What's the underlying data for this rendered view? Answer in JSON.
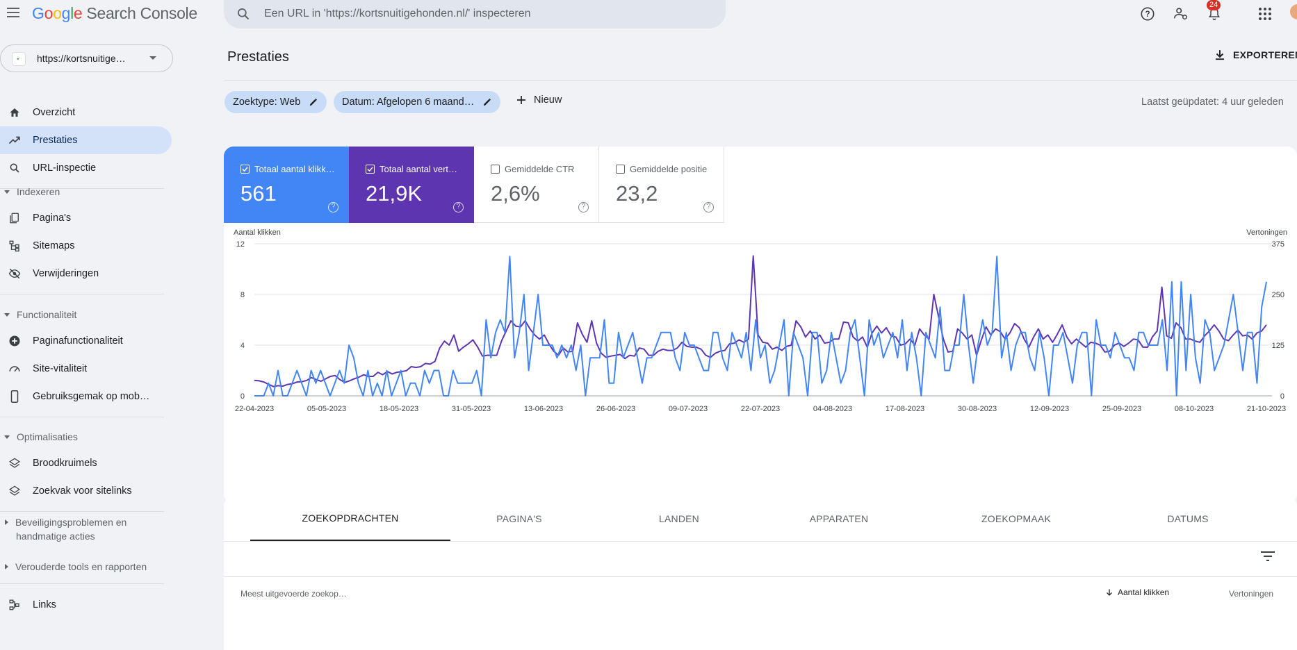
{
  "app": {
    "title_google": "Google",
    "title_product": "Search Console"
  },
  "search": {
    "placeholder": "Een URL in 'https://kortsnuitigehonden.nl/' inspecteren"
  },
  "topbar": {
    "notifications_count": "24"
  },
  "property": {
    "label": "https://kortsnuitige…"
  },
  "sidebar": {
    "items": [
      {
        "label": "Overzicht",
        "icon": "home-icon"
      },
      {
        "label": "Prestaties",
        "icon": "trending-up-icon"
      },
      {
        "label": "URL-inspectie",
        "icon": "search-icon"
      }
    ],
    "sections": [
      {
        "label": "Indexeren",
        "items": [
          {
            "label": "Pagina's",
            "icon": "pages-icon"
          },
          {
            "label": "Sitemaps",
            "icon": "sitemap-icon"
          },
          {
            "label": "Verwijderingen",
            "icon": "eye-off-icon"
          }
        ]
      },
      {
        "label": "Functionaliteit",
        "items": [
          {
            "label": "Paginafunctionaliteit",
            "icon": "plus-circle-icon"
          },
          {
            "label": "Site-vitaliteit",
            "icon": "gauge-icon"
          },
          {
            "label": "Gebruiksgemak op mob…",
            "icon": "phone-icon"
          }
        ]
      },
      {
        "label": "Optimalisaties",
        "items": [
          {
            "label": "Broodkruimels",
            "icon": "layers-icon"
          },
          {
            "label": "Zoekvak voor sitelinks",
            "icon": "layers-icon"
          }
        ]
      }
    ],
    "security_line1": "Beveiligingsproblemen en",
    "security_line2": "handmatige acties",
    "legacy": "Verouderde tools en rapporten",
    "links": "Links"
  },
  "main": {
    "title": "Prestaties",
    "export": "EXPORTEREN",
    "chip_type": "Zoektype: Web",
    "chip_date": "Datum: Afgelopen 6 maand…",
    "new": "Nieuw",
    "updated": "Laatst geüpdatet: 4 uur geleden"
  },
  "metrics": [
    {
      "label": "Totaal aantal klikk…",
      "value": "561",
      "checked": true
    },
    {
      "label": "Totaal aantal vert…",
      "value": "21,9K",
      "checked": true
    },
    {
      "label": "Gemiddelde CTR",
      "value": "2,6%",
      "checked": false
    },
    {
      "label": "Gemiddelde positie",
      "value": "23,2",
      "checked": false
    }
  ],
  "colors": {
    "clicks": "#4285f4",
    "impressions": "#5e35b1"
  },
  "chart_data": {
    "type": "line",
    "ylabel_left": "Aantal klikken",
    "ylabel_right": "Vertoningen",
    "y_left_ticks": [
      "0",
      "4",
      "8",
      "12"
    ],
    "y_right_ticks": [
      "0",
      "125",
      "250",
      "375"
    ],
    "ylim_left": [
      0,
      12
    ],
    "ylim_right": [
      0,
      375
    ],
    "x_ticks": [
      "22-04-2023",
      "05-05-2023",
      "18-05-2023",
      "31-05-2023",
      "13-06-2023",
      "26-06-2023",
      "09-07-2023",
      "22-07-2023",
      "04-08-2023",
      "17-08-2023",
      "30-08-2023",
      "12-09-2023",
      "25-09-2023",
      "08-10-2023",
      "21-10-2023"
    ],
    "series": [
      {
        "name": "Aantal klikken",
        "axis": "left",
        "values": [
          0,
          0,
          0,
          1,
          0,
          2,
          0,
          0,
          1,
          2,
          1,
          0,
          2,
          1,
          2,
          1,
          0,
          1,
          2,
          1,
          4,
          3,
          1,
          0,
          2,
          0,
          1,
          0,
          2,
          0,
          1,
          2,
          0,
          1,
          1,
          0,
          2,
          1,
          2,
          2,
          0,
          0,
          2,
          1,
          1,
          1,
          1,
          2,
          0,
          6,
          3,
          5,
          6,
          5,
          11,
          3,
          5,
          8,
          2,
          5,
          8,
          4,
          4,
          4,
          3,
          4,
          3,
          4,
          2,
          4,
          0,
          3,
          3,
          3,
          6,
          1,
          1,
          5,
          3,
          4,
          5,
          3,
          1,
          3,
          3,
          4,
          5,
          5,
          5,
          3,
          2,
          5,
          4,
          4,
          3,
          2,
          2,
          5,
          5,
          3,
          2,
          5,
          4,
          3,
          5,
          2,
          6,
          3,
          4,
          1,
          2,
          4,
          6,
          0,
          5,
          4,
          3,
          0,
          5,
          5,
          1,
          2,
          5,
          3,
          1,
          2,
          5,
          6,
          3,
          0,
          6,
          4,
          5,
          3,
          4,
          5,
          3,
          6,
          2,
          5,
          3,
          0,
          5,
          4,
          3,
          7,
          2,
          2,
          4,
          4,
          8,
          4,
          1,
          4,
          6,
          4,
          5,
          11,
          3,
          5,
          2,
          4,
          5,
          5,
          3,
          2,
          5,
          3,
          0,
          4,
          4,
          5,
          3,
          1,
          4,
          5,
          5,
          0,
          6,
          4,
          4,
          3,
          5,
          4,
          3,
          3,
          2,
          5,
          5,
          4,
          4,
          4,
          6,
          2,
          9,
          0,
          9,
          2,
          8,
          3,
          1,
          6,
          5,
          2,
          3,
          4,
          6,
          8,
          5,
          2,
          5,
          5,
          1,
          7,
          9
        ]
      },
      {
        "name": "Vertoningen",
        "axis": "right",
        "values": [
          38,
          37,
          34,
          28,
          23,
          25,
          24,
          28,
          30,
          34,
          35,
          38,
          45,
          40,
          36,
          42,
          48,
          50,
          40,
          33,
          37,
          42,
          46,
          52,
          48,
          48,
          58,
          52,
          60,
          54,
          58,
          60,
          62,
          72,
          70,
          72,
          80,
          78,
          85,
          118,
          135,
          125,
          150,
          110,
          120,
          128,
          138,
          120,
          98,
          100,
          100,
          100,
          135,
          160,
          185,
          172,
          170,
          185,
          165,
          150,
          140,
          150,
          128,
          110,
          100,
          118,
          108,
          110,
          180,
          152,
          132,
          185,
          130,
          105,
          95,
          98,
          100,
          102,
          92,
          100,
          98,
          118,
          115,
          100,
          100,
          110,
          115,
          112,
          112,
          118,
          132,
          122,
          120,
          120,
          115,
          100,
          95,
          105,
          110,
          112,
          128,
          130,
          138,
          132,
          140,
          345,
          150,
          132,
          130,
          115,
          120,
          112,
          122,
          125,
          185,
          170,
          145,
          160,
          140,
          150,
          130,
          132,
          140,
          140,
          182,
          180,
          145,
          135,
          145,
          120,
          155,
          172,
          155,
          168,
          148,
          145,
          125,
          128,
          140,
          125,
          165,
          150,
          140,
          250,
          195,
          140,
          108,
          110,
          165,
          155,
          140,
          150,
          100,
          138,
          170,
          150,
          165,
          158,
          140,
          155,
          178,
          168,
          140,
          120,
          145,
          165,
          140,
          150,
          132,
          152,
          175,
          145,
          128,
          140,
          130,
          120,
          132,
          130,
          125,
          108,
          110,
          125,
          130,
          122,
          130,
          140,
          138,
          120,
          120,
          145,
          160,
          268,
          148,
          142,
          180,
          168,
          140,
          140,
          135,
          132,
          148,
          160,
          175,
          160,
          140,
          136,
          150,
          162,
          148,
          150,
          140,
          155,
          160,
          175
        ]
      }
    ]
  },
  "tabs": {
    "items": [
      "ZOEKOPDRACHTEN",
      "PAGINA'S",
      "LANDEN",
      "APPARATEN",
      "ZOEKOPMAAK",
      "DATUMS"
    ],
    "col_query": "Meest uitgevoerde zoekop…",
    "col_clicks": "Aantal klikken",
    "col_impressions": "Vertoningen"
  }
}
